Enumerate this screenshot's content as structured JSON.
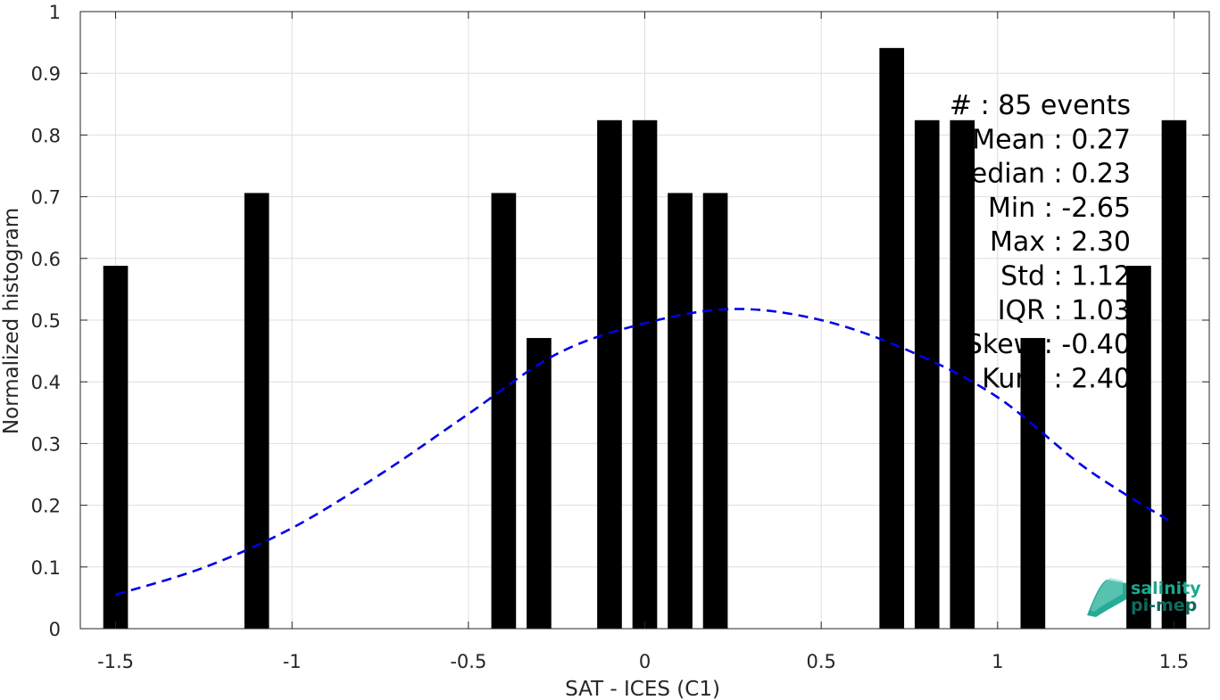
{
  "chart_data": {
    "type": "bar",
    "title": "",
    "xlabel": "SAT - ICES (C1)",
    "ylabel": "Normalized histogram",
    "xlim": [
      -1.6,
      1.6
    ],
    "ylim": [
      0,
      1
    ],
    "grid": true,
    "x_ticks": [
      "-1.5",
      "-1",
      "-0.5",
      "0",
      "0.5",
      "1",
      "1.5"
    ],
    "x_tick_values": [
      -1.5,
      -1,
      -0.5,
      0,
      0.5,
      1,
      1.5
    ],
    "y_ticks": [
      "0",
      "0.1",
      "0.2",
      "0.3",
      "0.4",
      "0.5",
      "0.6",
      "0.7",
      "0.8",
      "0.9",
      "1"
    ],
    "y_tick_values": [
      0,
      0.1,
      0.2,
      0.3,
      0.4,
      0.5,
      0.6,
      0.7,
      0.8,
      0.9,
      1
    ],
    "bar_color": "#000000",
    "bars": [
      {
        "x": -1.5,
        "value": 0.588
      },
      {
        "x": -1.1,
        "value": 0.706
      },
      {
        "x": -0.4,
        "value": 0.706
      },
      {
        "x": -0.3,
        "value": 0.471
      },
      {
        "x": -0.1,
        "value": 0.824
      },
      {
        "x": 0.0,
        "value": 0.824
      },
      {
        "x": 0.1,
        "value": 0.706
      },
      {
        "x": 0.2,
        "value": 0.706
      },
      {
        "x": 0.7,
        "value": 0.941
      },
      {
        "x": 0.8,
        "value": 0.824
      },
      {
        "x": 0.9,
        "value": 0.824
      },
      {
        "x": 1.1,
        "value": 0.471
      },
      {
        "x": 1.4,
        "value": 0.588
      },
      {
        "x": 1.5,
        "value": 0.824
      }
    ],
    "fit_curve": {
      "color": "#0000e6",
      "style": "dashed",
      "x": [
        -1.5,
        -1.25,
        -1.0,
        -0.75,
        -0.5,
        -0.25,
        0.0,
        0.25,
        0.5,
        0.75,
        1.0,
        1.25,
        1.5
      ],
      "y": [
        0.055,
        0.099,
        0.163,
        0.25,
        0.348,
        0.445,
        0.495,
        0.518,
        0.5,
        0.45,
        0.375,
        0.26,
        0.17
      ]
    },
    "annotation": [
      "#  : 85 events",
      "Mean : 0.27",
      "Median : 0.23",
      "Min : -2.65",
      "Max : 2.30",
      "Std : 1.12",
      "IQR : 1.03",
      "Skew : -0.40",
      "Kurt. : 2.40"
    ]
  },
  "logo": {
    "line1": "salinity",
    "line2": "pi-mep",
    "color_primary": "#1aa88f",
    "color_secondary": "#0e6b5e"
  }
}
